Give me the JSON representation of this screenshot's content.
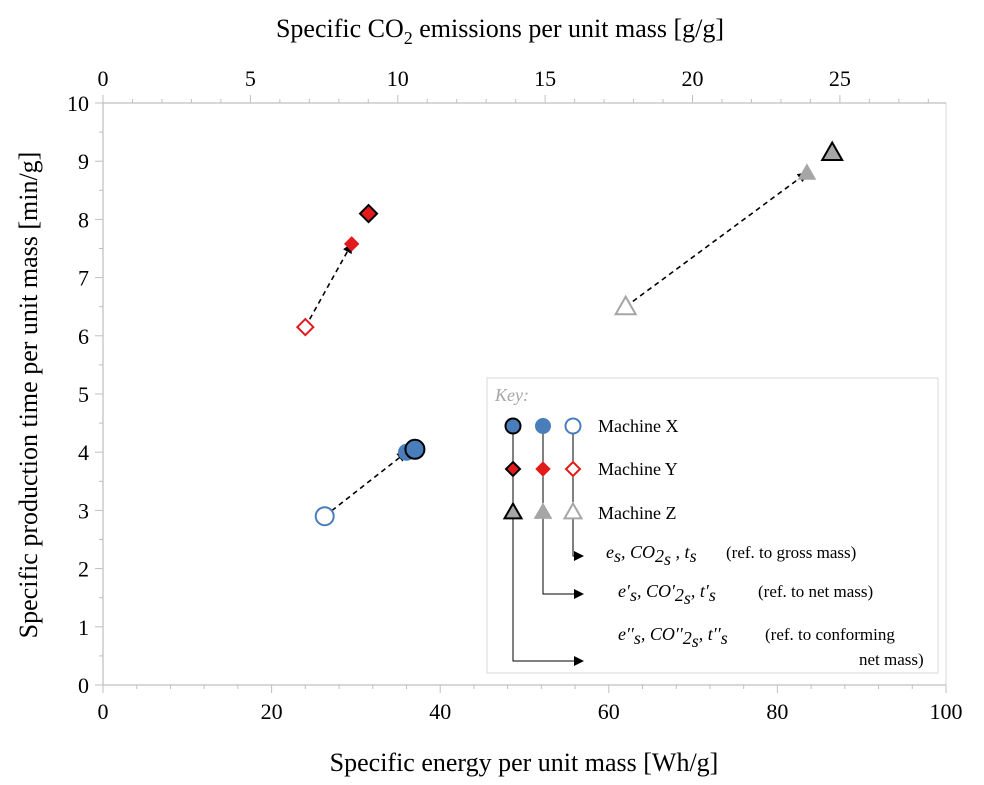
{
  "chart_data": {
    "type": "scatter",
    "xlabel": "Specific energy per unit mass [Wh/g]",
    "x2label": "Specific CO2 emissions per unit mass [g/g]",
    "ylabel": "Specific production time per unit mass [min/g]",
    "xlim": [
      0,
      100
    ],
    "x2lim": [
      0,
      28.6
    ],
    "ylim": [
      0,
      10
    ],
    "x_ticks": [
      "0",
      "20",
      "40",
      "60",
      "80",
      "100"
    ],
    "x2_ticks": [
      "0",
      "5",
      "10",
      "15",
      "20",
      "25"
    ],
    "y_ticks": [
      "0",
      "1",
      "2",
      "3",
      "4",
      "5",
      "6",
      "7",
      "8",
      "9",
      "10"
    ],
    "grid": false,
    "legend_position": "bottom-right",
    "series": [
      {
        "name": "Machine X",
        "color": "#4a7ebb",
        "marker": "circle",
        "points": [
          {
            "ref": "gross",
            "x": 26.3,
            "y": 2.9
          },
          {
            "ref": "net",
            "x": 36.0,
            "y": 4.0
          },
          {
            "ref": "conforming",
            "x": 37.0,
            "y": 4.05
          }
        ]
      },
      {
        "name": "Machine Y",
        "color": "#e31a1c",
        "marker": "diamond",
        "points": [
          {
            "ref": "gross",
            "x": 24.0,
            "y": 6.15
          },
          {
            "ref": "net",
            "x": 29.5,
            "y": 7.58
          },
          {
            "ref": "conforming",
            "x": 31.5,
            "y": 8.1
          }
        ]
      },
      {
        "name": "Machine Z",
        "color": "#a6a6a6",
        "marker": "triangle",
        "points": [
          {
            "ref": "gross",
            "x": 62.0,
            "y": 6.5
          },
          {
            "ref": "net",
            "x": 83.5,
            "y": 8.8
          },
          {
            "ref": "conforming",
            "x": 86.5,
            "y": 9.15
          }
        ]
      }
    ],
    "key": {
      "title": "Key:",
      "machines": [
        "Machine X",
        "Machine Y",
        "Machine Z"
      ],
      "refs": [
        {
          "label": "(ref. to gross mass)"
        },
        {
          "label": "(ref. to net mass)"
        },
        {
          "label": "(ref. to conforming",
          "label2": "net mass)"
        }
      ]
    }
  }
}
